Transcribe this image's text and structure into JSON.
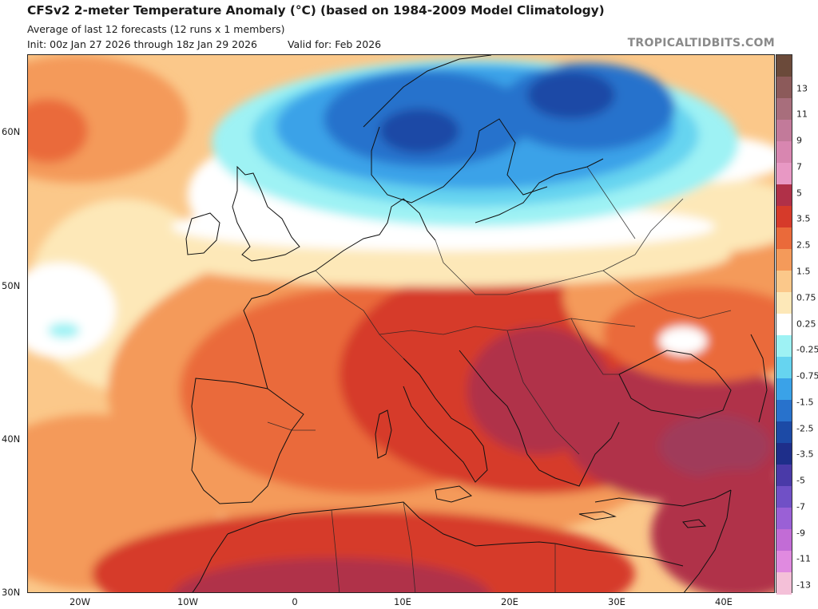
{
  "header": {
    "title": "CFSv2 2-meter Temperature Anomaly (°C) (based on 1984-2009 Model Climatology)",
    "subtitle": "Average of last 12 forecasts (12 runs x 1 members)",
    "init": "Init: 00z Jan 27 2026 through 18z Jan 29 2026",
    "valid": "Valid for: Feb 2026",
    "brand": "TROPICALTIDBITS.COM"
  },
  "axes": {
    "lat_labels": [
      "60N",
      "50N",
      "40N",
      "30N"
    ],
    "lon_labels": [
      "20W",
      "10W",
      "0",
      "10E",
      "20E",
      "30E",
      "40E"
    ]
  },
  "colorbar": {
    "labels": [
      "13",
      "11",
      "9",
      "7",
      "5",
      "3.5",
      "2.5",
      "1.5",
      "0.75",
      "0.25",
      "-0.25",
      "-0.75",
      "-1.5",
      "-2.5",
      "-3.5",
      "-5",
      "-7",
      "-9",
      "-11",
      "-13"
    ],
    "colors": [
      "#6b4a3a",
      "#8c5a5a",
      "#a86e7c",
      "#c27a9a",
      "#d886b0",
      "#e898c4",
      "#b03048",
      "#d63a2a",
      "#ea6a3a",
      "#f49a5a",
      "#fbc88a",
      "#fde8b8",
      "#ffffff",
      "#9ef2f4",
      "#66d4f0",
      "#3aa2e8",
      "#2872cc",
      "#1c4aa6",
      "#1e2e8a",
      "#4a3aa8",
      "#7050c6",
      "#9a60d6",
      "#c26cd6",
      "#e08ae0",
      "#f4c0d8"
    ]
  },
  "palette": {
    "ocean_base": "#fbc88a",
    "land_warm": "#ea6a3a",
    "land_hot": "#d63a2a",
    "land_vhot": "#b03048",
    "land_extreme": "#a03a5a",
    "cold_1": "#9ef2f4",
    "cold_2": "#66d4f0",
    "cold_3": "#3aa2e8",
    "cold_4": "#2872cc",
    "cold_5": "#1c4aa6",
    "neutral": "#ffffff",
    "light_warm": "#fde8b8",
    "mid_warm": "#f49a5a",
    "coast": "#111111"
  }
}
